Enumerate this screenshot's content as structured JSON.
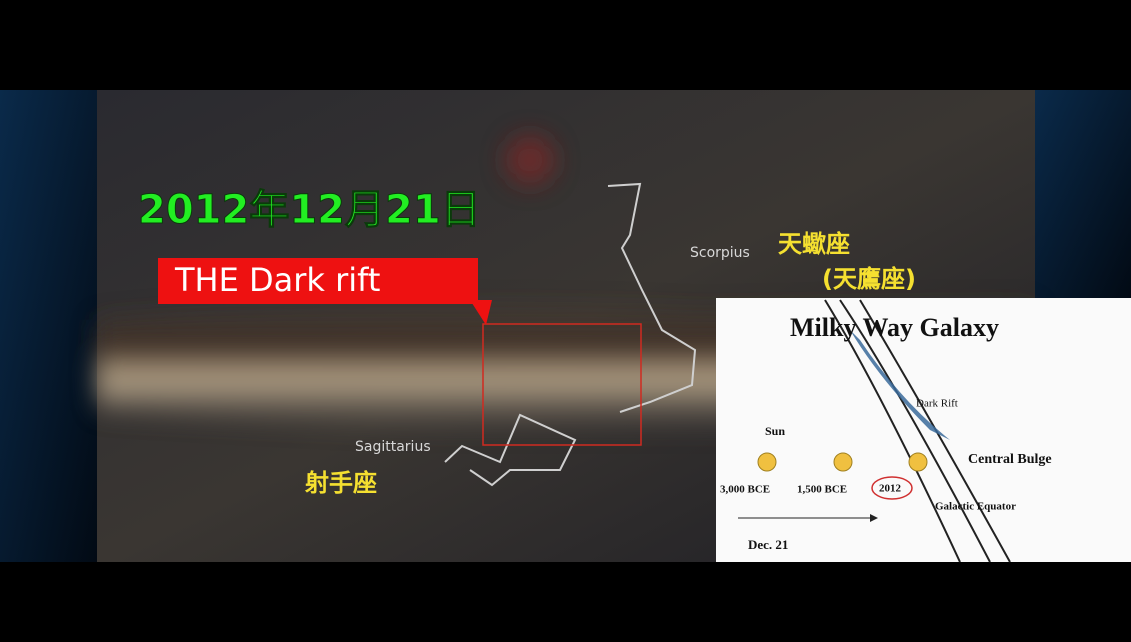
{
  "overlay": {
    "date": "2012年12月21日",
    "caption": "THE Dark rift",
    "scorpius": "Scorpius",
    "scorpius_zh": "天蠍座",
    "aquila_zh": "(天鷹座)",
    "sagittarius": "Sagittarius",
    "sagittarius_zh": "射手座"
  },
  "inset": {
    "title": "Milky Way Galaxy",
    "dark_rift": "Dark Rift",
    "sun": "Sun",
    "central_bulge": "Central Bulge",
    "dates": [
      "3,000 BCE",
      "1,500 BCE",
      "2012"
    ],
    "galactic_equator": "Galactic Equator",
    "day": "Dec. 21"
  }
}
